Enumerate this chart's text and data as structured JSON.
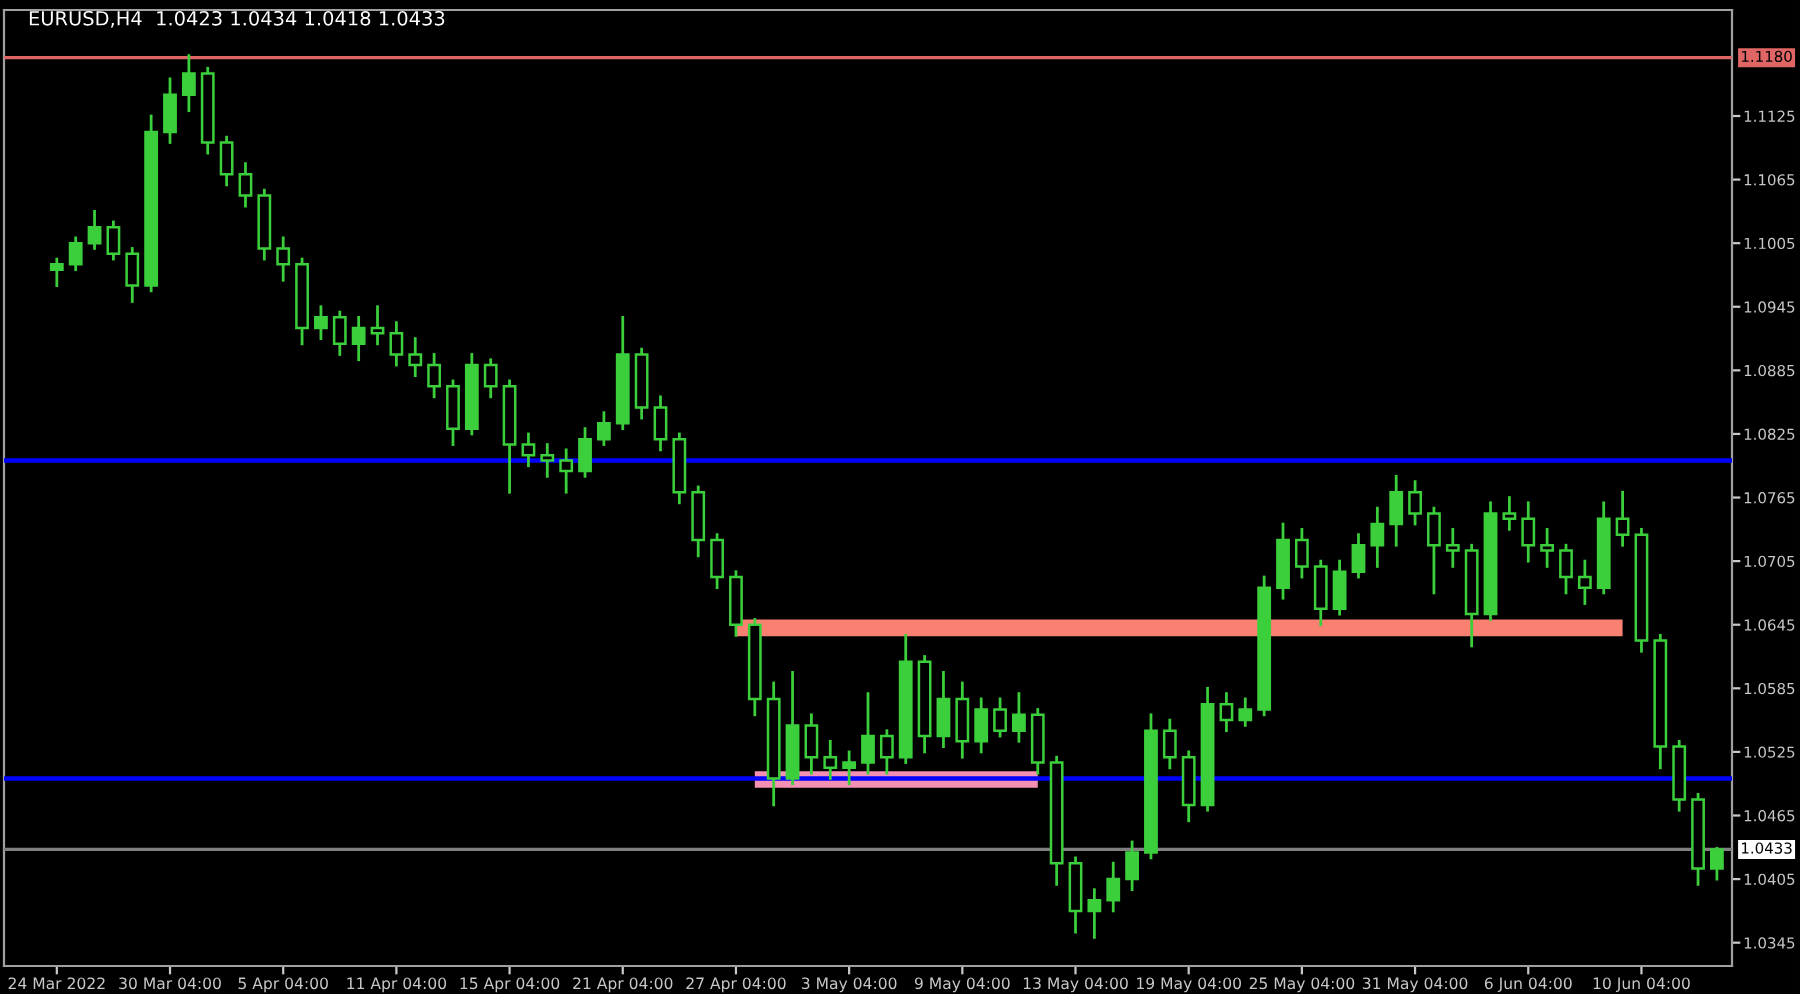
{
  "chart_data": {
    "type": "candlestick",
    "title": "EURUSD,H4  1.0423 1.0434 1.0418 1.0433",
    "color": "#3ccf3c",
    "categories": [
      "24 Mar 2022",
      null,
      null,
      null,
      null,
      null,
      "30 Mar 04:00",
      null,
      null,
      null,
      null,
      null,
      "5 Apr 04:00",
      null,
      null,
      null,
      null,
      null,
      "11 Apr 04:00",
      null,
      null,
      null,
      null,
      null,
      "15 Apr 04:00",
      null,
      null,
      null,
      null,
      null,
      "21 Apr 04:00",
      null,
      null,
      null,
      null,
      null,
      "27 Apr 04:00",
      null,
      null,
      null,
      null,
      null,
      "3 May 04:00",
      null,
      null,
      null,
      null,
      null,
      "9 May 04:00",
      null,
      null,
      null,
      null,
      null,
      "13 May 04:00",
      null,
      null,
      null,
      null,
      null,
      "19 May 04:00",
      null,
      null,
      null,
      null,
      null,
      "25 May 04:00",
      null,
      null,
      null,
      null,
      null,
      "31 May 04:00",
      null,
      null,
      null,
      null,
      null,
      "6 Jun 04:00",
      null,
      null,
      null,
      null,
      null,
      "10 Jun 04:00",
      null,
      null,
      null,
      null
    ],
    "ohlc": [
      [
        1.098,
        1.099,
        1.0965,
        1.0985
      ],
      [
        1.0985,
        1.101,
        1.098,
        1.1005
      ],
      [
        1.1005,
        1.1035,
        1.1,
        1.102
      ],
      [
        1.102,
        1.1025,
        1.099,
        1.0995
      ],
      [
        1.0995,
        1.1,
        1.095,
        1.0965
      ],
      [
        1.0965,
        1.1125,
        1.096,
        1.111
      ],
      [
        1.111,
        1.116,
        1.11,
        1.1145
      ],
      [
        1.1145,
        1.1182,
        1.113,
        1.1165
      ],
      [
        1.1165,
        1.117,
        1.109,
        1.11
      ],
      [
        1.11,
        1.1105,
        1.106,
        1.107
      ],
      [
        1.107,
        1.108,
        1.104,
        1.105
      ],
      [
        1.105,
        1.1055,
        1.099,
        1.1
      ],
      [
        1.1,
        1.101,
        1.097,
        1.0985
      ],
      [
        1.0985,
        1.099,
        1.091,
        1.0925
      ],
      [
        1.0925,
        1.0945,
        1.0915,
        1.0935
      ],
      [
        1.0935,
        1.094,
        1.09,
        1.091
      ],
      [
        1.091,
        1.0935,
        1.0895,
        1.0925
      ],
      [
        1.0925,
        1.0945,
        1.091,
        1.092
      ],
      [
        1.092,
        1.093,
        1.089,
        1.09
      ],
      [
        1.09,
        1.0915,
        1.088,
        1.089
      ],
      [
        1.089,
        1.09,
        1.086,
        1.087
      ],
      [
        1.087,
        1.0875,
        1.0815,
        1.083
      ],
      [
        1.083,
        1.09,
        1.0825,
        1.089
      ],
      [
        1.089,
        1.0895,
        1.086,
        1.087
      ],
      [
        1.087,
        1.0875,
        1.077,
        1.0815
      ],
      [
        1.0815,
        1.0825,
        1.0795,
        1.0805
      ],
      [
        1.0805,
        1.0815,
        1.0785,
        1.08
      ],
      [
        1.08,
        1.081,
        1.077,
        1.079
      ],
      [
        1.079,
        1.083,
        1.0785,
        1.082
      ],
      [
        1.082,
        1.0845,
        1.0815,
        1.0835
      ],
      [
        1.0835,
        1.0935,
        1.083,
        1.09
      ],
      [
        1.09,
        1.0905,
        1.084,
        1.085
      ],
      [
        1.085,
        1.086,
        1.081,
        1.082
      ],
      [
        1.082,
        1.0825,
        1.076,
        1.077
      ],
      [
        1.077,
        1.0775,
        1.071,
        1.0725
      ],
      [
        1.0725,
        1.073,
        1.068,
        1.069
      ],
      [
        1.069,
        1.0695,
        1.0635,
        1.0645
      ],
      [
        1.0645,
        1.065,
        1.056,
        1.0575
      ],
      [
        1.0575,
        1.059,
        1.0475,
        1.05
      ],
      [
        1.05,
        1.06,
        1.0495,
        1.055
      ],
      [
        1.055,
        1.056,
        1.0505,
        1.052
      ],
      [
        1.052,
        1.0535,
        1.05,
        1.051
      ],
      [
        1.051,
        1.0525,
        1.0495,
        1.0515
      ],
      [
        1.0515,
        1.058,
        1.0505,
        1.054
      ],
      [
        1.054,
        1.0545,
        1.0505,
        1.052
      ],
      [
        1.052,
        1.0635,
        1.0515,
        1.061
      ],
      [
        1.061,
        1.0615,
        1.0525,
        1.054
      ],
      [
        1.054,
        1.06,
        1.053,
        1.0575
      ],
      [
        1.0575,
        1.059,
        1.052,
        1.0535
      ],
      [
        1.0535,
        1.0575,
        1.0525,
        1.0565
      ],
      [
        1.0565,
        1.0575,
        1.054,
        1.0545
      ],
      [
        1.0545,
        1.058,
        1.0535,
        1.056
      ],
      [
        1.056,
        1.0565,
        1.0505,
        1.0515
      ],
      [
        1.0515,
        1.052,
        1.04,
        1.042
      ],
      [
        1.042,
        1.0425,
        1.0355,
        1.0375
      ],
      [
        1.0375,
        1.0395,
        1.035,
        1.0385
      ],
      [
        1.0385,
        1.042,
        1.0375,
        1.0405
      ],
      [
        1.0405,
        1.044,
        1.0395,
        1.043
      ],
      [
        1.043,
        1.056,
        1.0425,
        1.0545
      ],
      [
        1.0545,
        1.0555,
        1.051,
        1.052
      ],
      [
        1.052,
        1.0525,
        1.046,
        1.0475
      ],
      [
        1.0475,
        1.0585,
        1.047,
        1.057
      ],
      [
        1.057,
        1.058,
        1.0545,
        1.0555
      ],
      [
        1.0555,
        1.0575,
        1.055,
        1.0565
      ],
      [
        1.0565,
        1.069,
        1.056,
        1.068
      ],
      [
        1.068,
        1.074,
        1.067,
        1.0725
      ],
      [
        1.0725,
        1.0735,
        1.069,
        1.07
      ],
      [
        1.07,
        1.0705,
        1.0645,
        1.066
      ],
      [
        1.066,
        1.0705,
        1.0655,
        1.0695
      ],
      [
        1.0695,
        1.073,
        1.069,
        1.072
      ],
      [
        1.072,
        1.0755,
        1.07,
        1.074
      ],
      [
        1.074,
        1.0785,
        1.072,
        1.077
      ],
      [
        1.077,
        1.078,
        1.074,
        1.075
      ],
      [
        1.075,
        1.0755,
        1.0675,
        1.072
      ],
      [
        1.072,
        1.0735,
        1.07,
        1.0715
      ],
      [
        1.0715,
        1.072,
        1.0625,
        1.0655
      ],
      [
        1.0655,
        1.076,
        1.065,
        1.075
      ],
      [
        1.075,
        1.0765,
        1.0735,
        1.0745
      ],
      [
        1.0745,
        1.076,
        1.0705,
        1.072
      ],
      [
        1.072,
        1.0735,
        1.07,
        1.0715
      ],
      [
        1.0715,
        1.072,
        1.0675,
        1.069
      ],
      [
        1.069,
        1.0705,
        1.0665,
        1.068
      ],
      [
        1.068,
        1.076,
        1.0675,
        1.0745
      ],
      [
        1.0745,
        1.077,
        1.072,
        1.073
      ],
      [
        1.073,
        1.0735,
        1.062,
        1.063
      ],
      [
        1.063,
        1.0635,
        1.051,
        1.053
      ],
      [
        1.053,
        1.0535,
        1.047,
        1.048
      ],
      [
        1.048,
        1.0485,
        1.04,
        1.0415
      ],
      [
        1.0415,
        1.0434,
        1.0405,
        1.0433
      ]
    ],
    "series": [
      {
        "type": "line",
        "color": "#fa8072",
        "values": [
          null,
          null,
          null,
          null,
          null,
          null,
          null,
          null,
          null,
          null,
          null,
          null,
          null,
          null,
          null,
          null,
          null,
          null,
          null,
          null,
          null,
          null,
          null,
          null,
          null,
          null,
          null,
          null,
          null,
          null,
          null,
          null,
          null,
          null,
          null,
          null,
          1.0642,
          1.0642,
          1.0642,
          1.0642,
          1.0642,
          1.0642,
          1.0642,
          1.0642,
          1.0642,
          1.0642,
          1.0642,
          1.0642,
          1.0642,
          1.0642,
          1.0642,
          1.0642,
          1.0642,
          1.0642,
          1.0642,
          1.0642,
          1.0642,
          1.0642,
          1.0642,
          1.0642,
          1.0642,
          1.0642,
          1.0642,
          1.0642,
          1.0642,
          1.0642,
          1.0642,
          1.0642,
          1.0642,
          1.0642,
          1.0642,
          1.0642,
          1.0642,
          1.0642,
          1.0642,
          1.0642,
          1.0642,
          1.0642,
          1.0642,
          1.0642,
          1.0642,
          1.0642,
          1.0642,
          1.0642,
          null,
          null,
          null,
          null,
          null
        ]
      },
      {
        "type": "line",
        "color": "#f490b4",
        "values": [
          null,
          null,
          null,
          null,
          null,
          null,
          null,
          null,
          null,
          null,
          null,
          null,
          null,
          null,
          null,
          null,
          null,
          null,
          null,
          null,
          null,
          null,
          null,
          null,
          null,
          null,
          null,
          null,
          null,
          null,
          null,
          null,
          null,
          null,
          null,
          null,
          null,
          1.0499,
          1.0499,
          1.0499,
          1.0499,
          1.0499,
          1.0499,
          1.0499,
          1.0499,
          1.0499,
          1.0499,
          1.0499,
          1.0499,
          1.0499,
          1.0499,
          1.0499,
          1.0499,
          null,
          null,
          null,
          null,
          null,
          null,
          null,
          null,
          null,
          null,
          null,
          null,
          null,
          null,
          null,
          null,
          null,
          null,
          null,
          null,
          null,
          null,
          null,
          null,
          null,
          null,
          null,
          null,
          null,
          null,
          null,
          null,
          null,
          null,
          null,
          null
        ]
      }
    ],
    "ylim": [
      1.0323,
      1.1225
    ],
    "yticks": [
      1.1125,
      1.1065,
      1.1005,
      1.0945,
      1.0885,
      1.0825,
      1.0765,
      1.0705,
      1.0645,
      1.0585,
      1.0525,
      1.0465,
      1.0405,
      1.0345
    ],
    "ref_lines": [
      {
        "axis": "y",
        "value": 1.118,
        "label": "1.1180",
        "color": "#e06666"
      },
      {
        "axis": "y",
        "value": 1.08,
        "color": "#0000ff"
      },
      {
        "axis": "y",
        "value": 1.05,
        "color": "#0000ff"
      },
      {
        "axis": "y",
        "value": 1.0433,
        "label": "1.0433",
        "color": "#808080"
      }
    ],
    "grid": false,
    "legend": false
  }
}
